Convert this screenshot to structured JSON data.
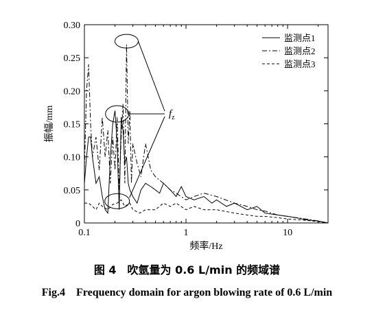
{
  "chart_data": {
    "type": "line",
    "x_scale": "log",
    "xlim": [
      0.1,
      25
    ],
    "ylim": [
      0,
      0.3
    ],
    "x_ticks": [
      0.1,
      1,
      10
    ],
    "x_tick_labels": [
      "0.1",
      "1",
      "10"
    ],
    "y_ticks": [
      0,
      0.05,
      0.1,
      0.15,
      0.2,
      0.25,
      0.3
    ],
    "y_tick_labels": [
      "0",
      "0.05",
      "0.10",
      "0.15",
      "0.20",
      "0.25",
      "0.30"
    ],
    "xlabel": "频率/Hz",
    "ylabel": "振幅/mm",
    "legend_position": "top-right",
    "annotation": "f",
    "annotation_sub": "z",
    "grid": false,
    "series": [
      {
        "name": "监测点1",
        "style": "solid",
        "color": "#000000",
        "x": [
          0.1,
          0.105,
          0.11,
          0.115,
          0.12,
          0.13,
          0.14,
          0.15,
          0.16,
          0.17,
          0.18,
          0.19,
          0.2,
          0.21,
          0.22,
          0.23,
          0.24,
          0.25,
          0.26,
          0.27,
          0.28,
          0.3,
          0.33,
          0.36,
          0.4,
          0.45,
          0.5,
          0.55,
          0.6,
          0.7,
          0.8,
          0.9,
          1.0,
          1.2,
          1.5,
          1.8,
          2.0,
          2.5,
          3.0,
          4.0,
          5.0,
          6.0,
          8.0,
          10.0,
          12.0,
          15.0,
          20.0,
          25.0
        ],
        "y": [
          0.06,
          0.1,
          0.13,
          0.13,
          0.1,
          0.06,
          0.07,
          0.04,
          0.02,
          0.015,
          0.1,
          0.15,
          0.17,
          0.12,
          0.02,
          0.16,
          0.14,
          0.09,
          0.1,
          0.06,
          0.05,
          0.04,
          0.03,
          0.05,
          0.06,
          0.055,
          0.05,
          0.045,
          0.06,
          0.05,
          0.04,
          0.055,
          0.04,
          0.035,
          0.04,
          0.03,
          0.035,
          0.025,
          0.03,
          0.02,
          0.025,
          0.015,
          0.012,
          0.01,
          0.008,
          0.005,
          0.003,
          0.0
        ]
      },
      {
        "name": "监测点2",
        "style": "dashdot",
        "color": "#000000",
        "x": [
          0.1,
          0.105,
          0.11,
          0.115,
          0.12,
          0.13,
          0.14,
          0.15,
          0.16,
          0.17,
          0.18,
          0.19,
          0.2,
          0.21,
          0.22,
          0.23,
          0.24,
          0.25,
          0.26,
          0.27,
          0.28,
          0.29,
          0.3,
          0.33,
          0.36,
          0.4,
          0.45,
          0.5,
          0.6,
          0.7,
          0.8,
          1.0,
          1.2,
          1.5,
          2.0,
          3.0,
          4.0,
          5.0,
          6.0,
          8.0,
          10.0,
          15.0,
          20.0,
          25.0
        ],
        "y": [
          0.08,
          0.2,
          0.24,
          0.15,
          0.1,
          0.13,
          0.08,
          0.16,
          0.1,
          0.14,
          0.06,
          0.13,
          0.08,
          0.16,
          0.05,
          0.13,
          0.18,
          0.06,
          0.27,
          0.12,
          0.17,
          0.06,
          0.12,
          0.09,
          0.07,
          0.12,
          0.08,
          0.07,
          0.06,
          0.05,
          0.045,
          0.035,
          0.04,
          0.045,
          0.04,
          0.03,
          0.025,
          0.02,
          0.018,
          0.012,
          0.01,
          0.006,
          0.003,
          0.0
        ]
      },
      {
        "name": "监测点3",
        "style": "dashed",
        "color": "#000000",
        "x": [
          0.1,
          0.11,
          0.12,
          0.13,
          0.14,
          0.15,
          0.17,
          0.19,
          0.21,
          0.23,
          0.25,
          0.28,
          0.3,
          0.35,
          0.4,
          0.5,
          0.6,
          0.7,
          0.8,
          1.0,
          1.2,
          1.5,
          2.0,
          3.0,
          4.0,
          5.0,
          6.0,
          8.0,
          10.0,
          15.0,
          20.0,
          25.0
        ],
        "y": [
          0.03,
          0.03,
          0.025,
          0.02,
          0.03,
          0.025,
          0.02,
          0.028,
          0.03,
          0.035,
          0.025,
          0.03,
          0.02,
          0.015,
          0.02,
          0.02,
          0.03,
          0.025,
          0.03,
          0.02,
          0.025,
          0.02,
          0.02,
          0.015,
          0.012,
          0.01,
          0.01,
          0.008,
          0.006,
          0.004,
          0.002,
          0.0
        ]
      }
    ]
  },
  "captions": {
    "cn": "图 4　吹氩量为 0.6 L/min 的频域谱",
    "en": "Fig.4　Frequency domain for argon blowing rate of 0.6 L/min"
  }
}
